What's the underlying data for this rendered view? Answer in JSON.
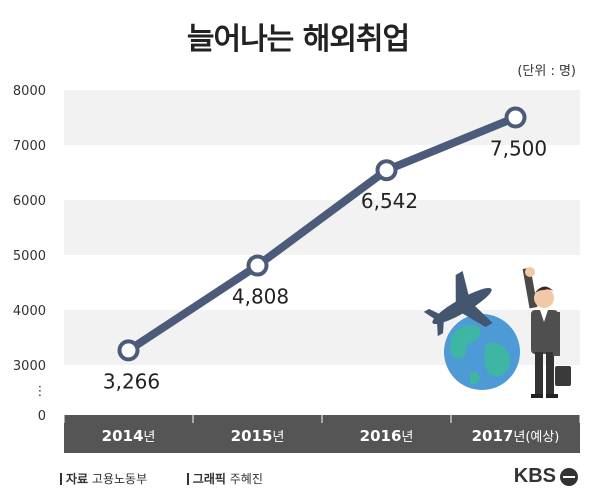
{
  "title": "늘어나는 해외취업",
  "unit": "(단위 : 명)",
  "chart_data": {
    "type": "line",
    "title": "늘어나는 해외취업",
    "x": [
      "2014",
      "2015",
      "2016",
      "2017"
    ],
    "x_suffix": [
      "년",
      "년",
      "년",
      "년(예상)"
    ],
    "series": [
      {
        "values": [
          3266,
          4808,
          6542,
          7500
        ]
      }
    ],
    "data_labels": [
      "3,266",
      "4,808",
      "6,542",
      "7,500"
    ],
    "yticks": [
      "8000",
      "7000",
      "6000",
      "5000",
      "4000",
      "3000",
      "0"
    ],
    "ylim": [
      0,
      8000
    ],
    "axis_break": "⋮",
    "line_color": "#4c5b7a",
    "band_color": "#f2f2f2",
    "xaxis_bg": "#555555"
  },
  "footer": {
    "source_label": "자료",
    "source": "고용노동부",
    "graphic_label": "그래픽",
    "graphic": "주혜진",
    "logo": "KBS"
  }
}
